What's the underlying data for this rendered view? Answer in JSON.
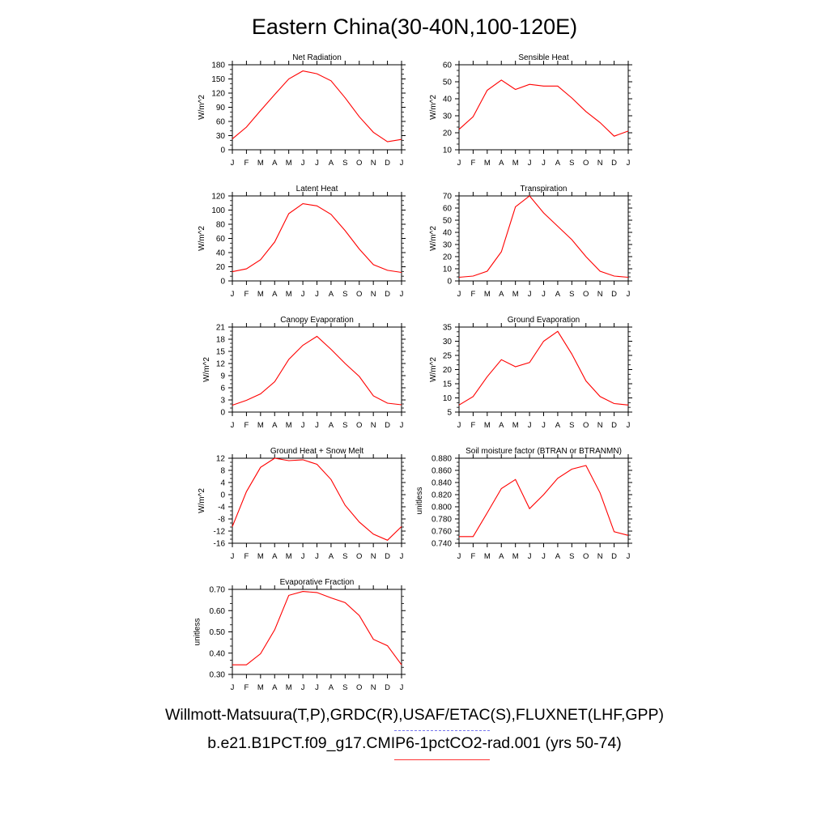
{
  "page_title": "Eastern China(30-40N,100-120E)",
  "footer": {
    "obs_line": "Willmott-Matsuura(T,P),GRDC(R),USAF/ETAC(S),FLUXNET(LHF,GPP)",
    "model_line": "b.e21.B1PCT.f09_g17.CMIP6-1pctCO2-rad.001 (yrs 50-74)",
    "obs_color": "#7777ee",
    "model_color": "#ff0000"
  },
  "chart_data": [
    {
      "type": "line",
      "title": "Net Radiation",
      "ylabel": "W/m^2",
      "x": [
        "J",
        "F",
        "M",
        "A",
        "M",
        "J",
        "J",
        "A",
        "S",
        "O",
        "N",
        "D",
        "J"
      ],
      "ylim": [
        0,
        180
      ],
      "yticks": [
        "0",
        "30",
        "60",
        "90",
        "120",
        "150",
        "180"
      ],
      "series": [
        {
          "color": "#ff0000",
          "values": [
            23,
            48,
            83,
            117,
            150,
            167,
            161,
            146,
            110,
            70,
            37,
            17,
            22
          ]
        }
      ]
    },
    {
      "type": "line",
      "title": "Sensible Heat",
      "ylabel": "W/m^2",
      "x": [
        "J",
        "F",
        "M",
        "A",
        "M",
        "J",
        "J",
        "A",
        "S",
        "O",
        "N",
        "D",
        "J"
      ],
      "ylim": [
        10,
        60
      ],
      "yticks": [
        "10",
        "20",
        "30",
        "40",
        "50",
        "60"
      ],
      "series": [
        {
          "color": "#ff0000",
          "values": [
            22,
            29.5,
            45,
            51,
            45.5,
            48.5,
            47.5,
            47.5,
            40.5,
            32.5,
            26,
            18,
            21
          ]
        }
      ]
    },
    {
      "type": "line",
      "title": "Latent Heat",
      "ylabel": "W/m^2",
      "x": [
        "J",
        "F",
        "M",
        "A",
        "M",
        "J",
        "J",
        "A",
        "S",
        "O",
        "N",
        "D",
        "J"
      ],
      "ylim": [
        0,
        120
      ],
      "yticks": [
        "0",
        "20",
        "40",
        "60",
        "80",
        "100",
        "120"
      ],
      "series": [
        {
          "color": "#ff0000",
          "values": [
            13,
            17,
            30,
            55,
            95,
            109,
            106,
            94,
            71,
            45,
            23,
            15,
            12
          ]
        }
      ]
    },
    {
      "type": "line",
      "title": "Transpiration",
      "ylabel": "W/m^2",
      "x": [
        "J",
        "F",
        "M",
        "A",
        "M",
        "J",
        "J",
        "A",
        "S",
        "O",
        "N",
        "D",
        "J"
      ],
      "ylim": [
        0,
        70
      ],
      "yticks": [
        "0",
        "10",
        "20",
        "30",
        "40",
        "50",
        "60",
        "70"
      ],
      "series": [
        {
          "color": "#ff0000",
          "values": [
            3,
            4,
            8,
            24,
            61,
            70,
            56,
            45,
            34,
            20,
            8,
            4,
            3
          ]
        }
      ]
    },
    {
      "type": "line",
      "title": "Canopy Evaporation",
      "ylabel": "W/m^2",
      "x": [
        "J",
        "F",
        "M",
        "A",
        "M",
        "J",
        "J",
        "A",
        "S",
        "O",
        "N",
        "D",
        "J"
      ],
      "ylim": [
        0,
        21
      ],
      "yticks": [
        "0",
        "3",
        "6",
        "9",
        "12",
        "15",
        "18",
        "21"
      ],
      "series": [
        {
          "color": "#ff0000",
          "values": [
            1.7,
            2.9,
            4.5,
            7.5,
            13,
            16.5,
            18.7,
            15.5,
            12,
            8.8,
            4,
            2.2,
            1.8
          ]
        }
      ]
    },
    {
      "type": "line",
      "title": "Ground Evaporation",
      "ylabel": "W/m^2",
      "x": [
        "J",
        "F",
        "M",
        "A",
        "M",
        "J",
        "J",
        "A",
        "S",
        "O",
        "N",
        "D",
        "J"
      ],
      "ylim": [
        5,
        35
      ],
      "yticks": [
        "5",
        "10",
        "15",
        "20",
        "25",
        "30",
        "35"
      ],
      "series": [
        {
          "color": "#ff0000",
          "values": [
            7.5,
            10.5,
            17.5,
            23.5,
            21,
            22.5,
            30,
            33.5,
            25.5,
            16,
            10.5,
            8,
            7.5
          ]
        }
      ]
    },
    {
      "type": "line",
      "title": "Ground Heat + Snow Melt",
      "ylabel": "W/m^2",
      "x": [
        "J",
        "F",
        "M",
        "A",
        "M",
        "J",
        "J",
        "A",
        "S",
        "O",
        "N",
        "D",
        "J"
      ],
      "ylim": [
        -16,
        12
      ],
      "yticks": [
        "-16",
        "-12",
        "-8",
        "-4",
        "0",
        "4",
        "8",
        "12"
      ],
      "series": [
        {
          "color": "#ff0000",
          "values": [
            -10.5,
            1,
            9,
            12,
            11.2,
            11.5,
            10,
            5,
            -3.5,
            -9,
            -13,
            -15,
            -10.5
          ]
        }
      ]
    },
    {
      "type": "line",
      "title": "Soil moisture factor (BTRAN or BTRANMN)",
      "ylabel": "unitless",
      "x": [
        "J",
        "F",
        "M",
        "A",
        "M",
        "J",
        "J",
        "A",
        "S",
        "O",
        "N",
        "D",
        "J"
      ],
      "ylim": [
        0.74,
        0.88
      ],
      "yticks": [
        "0.740",
        "0.760",
        "0.780",
        "0.800",
        "0.820",
        "0.840",
        "0.860",
        "0.880"
      ],
      "series": [
        {
          "color": "#ff0000",
          "values": [
            0.751,
            0.751,
            0.79,
            0.83,
            0.845,
            0.797,
            0.82,
            0.847,
            0.862,
            0.868,
            0.823,
            0.759,
            0.753
          ]
        }
      ]
    },
    {
      "type": "line",
      "title": "Evaporative Fraction",
      "ylabel": "unitless",
      "x": [
        "J",
        "F",
        "M",
        "A",
        "M",
        "J",
        "J",
        "A",
        "S",
        "O",
        "N",
        "D",
        "J"
      ],
      "ylim": [
        0.3,
        0.7
      ],
      "yticks": [
        "0.30",
        "0.40",
        "0.50",
        "0.60",
        "0.70"
      ],
      "series": [
        {
          "color": "#ff0000",
          "values": [
            0.345,
            0.345,
            0.397,
            0.51,
            0.672,
            0.69,
            0.685,
            0.66,
            0.638,
            0.577,
            0.465,
            0.435,
            0.345
          ]
        }
      ]
    }
  ]
}
